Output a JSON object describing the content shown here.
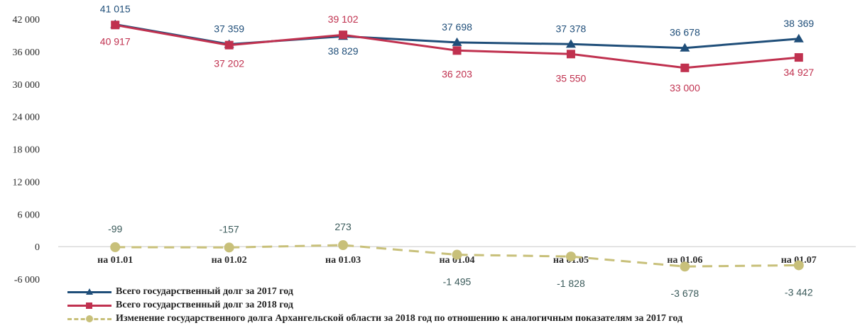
{
  "chart_data": {
    "type": "line",
    "categories": [
      "на 01.01",
      "на 01.02",
      "на 01.03",
      "на 01.04",
      "на 01.05",
      "на 01.06",
      "на 01.07"
    ],
    "ylim": [
      -6000,
      42000
    ],
    "yticks": [
      -6000,
      0,
      6000,
      12000,
      18000,
      24000,
      30000,
      36000,
      42000
    ],
    "ytick_labels": [
      "-6 000",
      "0",
      "6 000",
      "12 000",
      "18 000",
      "24 000",
      "30 000",
      "36 000",
      "42 000"
    ],
    "grid": false,
    "legend_position": "bottom-left",
    "series": [
      {
        "name": "Всего государственный долг за 2017 год",
        "color": "#1f4e79",
        "marker": "triangle",
        "values": [
          41015,
          37359,
          38829,
          37698,
          37378,
          36678,
          38369
        ],
        "labels": [
          "41 015",
          "37 359",
          "38 829",
          "37 698",
          "37 378",
          "36 678",
          "38 369"
        ]
      },
      {
        "name": "Всего государственный долг за 2018 год",
        "color": "#c0314f",
        "marker": "square",
        "values": [
          40917,
          37202,
          39102,
          36203,
          35550,
          33000,
          34927
        ],
        "labels": [
          "40 917",
          "37 202",
          "39 102",
          "36 203",
          "35 550",
          "33 000",
          "34 927"
        ]
      },
      {
        "name": "Изменение государственного долга Архангельской области за 2018 год по отношению к аналогичным показателям за 2017 год",
        "color": "#c8c07a",
        "marker": "circle",
        "dashed": true,
        "values": [
          -99,
          -157,
          273,
          -1495,
          -1828,
          -3678,
          -3442
        ],
        "labels": [
          "-99",
          "-157",
          "273",
          "-1 495",
          "-1 828",
          "-3 678",
          "-3 442"
        ]
      }
    ]
  }
}
